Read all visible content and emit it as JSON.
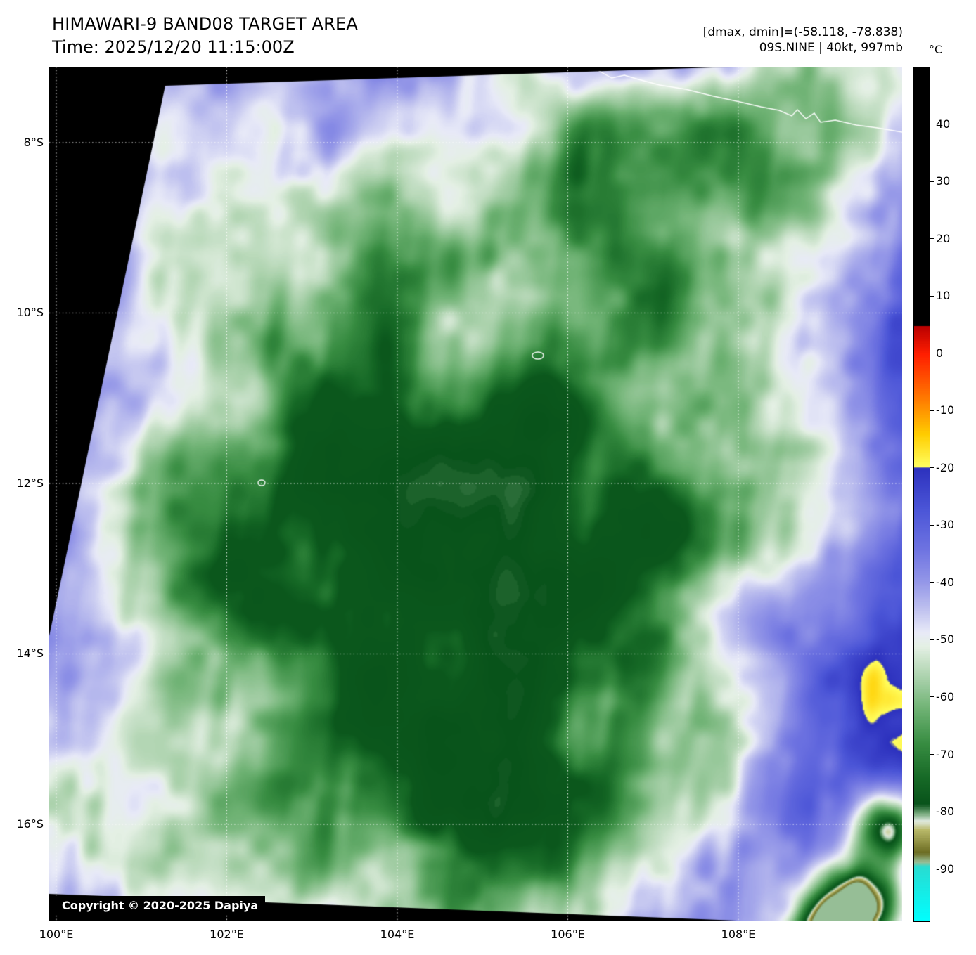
{
  "header": {
    "title": "HIMAWARI-9 BAND08 TARGET AREA",
    "time": "Time: 2025/12/20 11:15:00Z",
    "dmax_dmin": "[dmax, dmin]=(-58.118, -78.838)",
    "storm_info": "09S.NINE | 40kt, 997mb"
  },
  "colorbar": {
    "unit": "°C",
    "ticks": [
      {
        "value": 40,
        "label": "40"
      },
      {
        "value": 30,
        "label": "30"
      },
      {
        "value": 20,
        "label": "20"
      },
      {
        "value": 10,
        "label": "10"
      },
      {
        "value": 0,
        "label": "0"
      },
      {
        "value": -10,
        "label": "-10"
      },
      {
        "value": -20,
        "label": "-20"
      },
      {
        "value": -30,
        "label": "-30"
      },
      {
        "value": -40,
        "label": "-40"
      },
      {
        "value": -50,
        "label": "-50"
      },
      {
        "value": -60,
        "label": "-60"
      },
      {
        "value": -70,
        "label": "-70"
      },
      {
        "value": -80,
        "label": "-80"
      },
      {
        "value": -90,
        "label": "-90"
      }
    ]
  },
  "axes": {
    "lat_ticks": [
      {
        "value": 8,
        "label": "8°S"
      },
      {
        "value": 10,
        "label": "10°S"
      },
      {
        "value": 12,
        "label": "12°S"
      },
      {
        "value": 14,
        "label": "14°S"
      },
      {
        "value": 16,
        "label": "16°S"
      }
    ],
    "lon_ticks": [
      {
        "value": 100,
        "label": "100°E"
      },
      {
        "value": 102,
        "label": "102°E"
      },
      {
        "value": 104,
        "label": "104°E"
      },
      {
        "value": 106,
        "label": "106°E"
      },
      {
        "value": 108,
        "label": "108°E"
      }
    ]
  },
  "copyright": "Copyright © 2020-2025 Dapiya",
  "legend_colors": {
    "warm_ocean_blue": "#6975d7",
    "lavender_mid_cloud": "#c4c6f0",
    "cloud_white": "#eceef8",
    "cold_cloud_green": "#2f8a3d",
    "coldest_core_dark_green": "#0b561e",
    "background_void": "#000000"
  }
}
